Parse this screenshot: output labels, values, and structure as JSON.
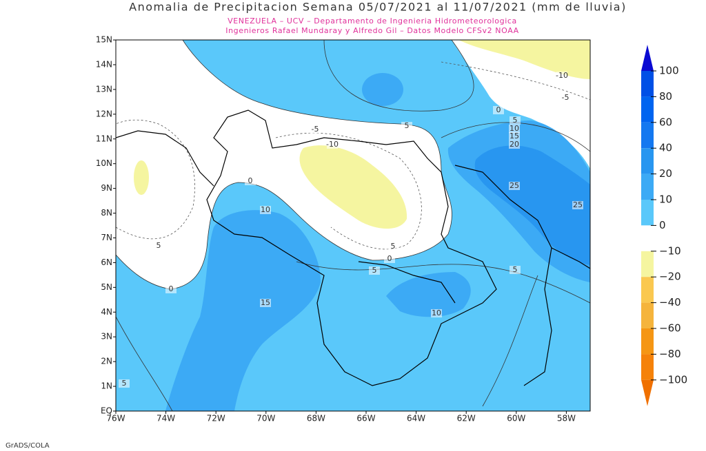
{
  "title": "Anomalia de Precipitacion Semana 05/07/2021 al 11/07/2021 (mm de lluvia)",
  "subtitle": [
    "VENEZUELA – UCV – Departamento de Ingenieria Hidrometeorologica",
    "Ingenieros Rafael Mundaray y Alfredo Gil – Datos Modelo CFSv2 NOAA"
  ],
  "lon_labels": [
    "76W",
    "74W",
    "72W",
    "70W",
    "68W",
    "66W",
    "64W",
    "62W",
    "60W",
    "58W"
  ],
  "lat_labels": [
    "EQ",
    "1N",
    "2N",
    "3N",
    "4N",
    "5N",
    "6N",
    "7N",
    "8N",
    "9N",
    "10N",
    "11N",
    "12N",
    "13N",
    "14N",
    "15N"
  ],
  "contour_labels": [
    "0",
    "10",
    "15",
    "0",
    "5",
    "5",
    "-5",
    "-10",
    "5",
    "0",
    "5",
    "10",
    "15",
    "20",
    "25",
    "25",
    "-10",
    "-5",
    "5",
    "0",
    "5",
    "10",
    "5"
  ],
  "colorbar": {
    "labels": [
      "100",
      "80",
      "60",
      "40",
      "20",
      "10",
      "0",
      "−10",
      "−20",
      "−40",
      "−60",
      "−80",
      "−100"
    ],
    "colors": [
      "#0a0ad2",
      "#0050e6",
      "#0064f0",
      "#1478f0",
      "#2896f0",
      "#3caaf5",
      "#5ac8fa",
      "#ffffff",
      "#f5f5a0",
      "#fac850",
      "#f5b43c",
      "#f59614",
      "#f5820a",
      "#f07000"
    ]
  },
  "footer": "GrADS/COLA"
}
